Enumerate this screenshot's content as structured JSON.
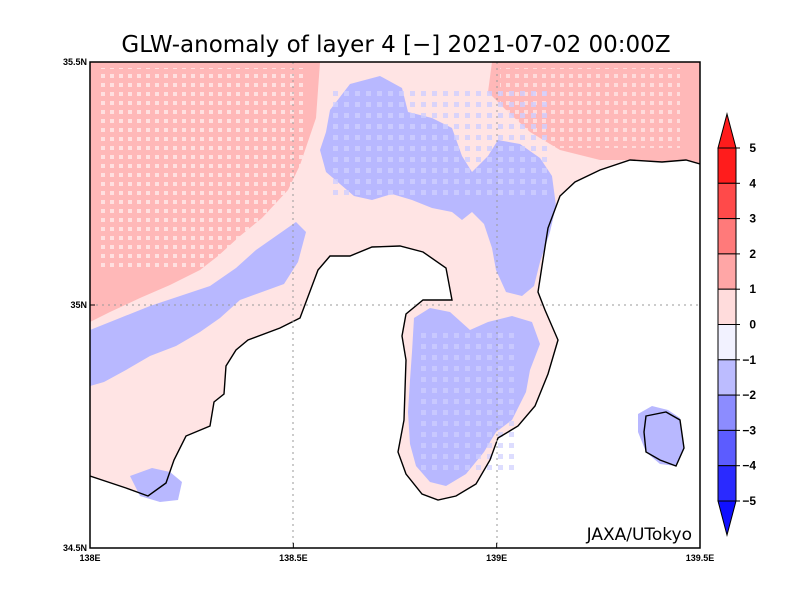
{
  "chart_data": {
    "type": "heatmap",
    "title": "GLW-anomaly of layer 4 [−] 2021-07-02 00:00Z",
    "xlim": [
      138.0,
      139.5
    ],
    "ylim": [
      34.5,
      35.5
    ],
    "x_ticks": [
      {
        "value": 138.0,
        "label": "138E"
      },
      {
        "value": 138.5,
        "label": "138.5E"
      },
      {
        "value": 139.0,
        "label": "139E"
      },
      {
        "value": 139.5,
        "label": "139.5E"
      }
    ],
    "y_ticks": [
      {
        "value": 34.5,
        "label": "34.5N"
      },
      {
        "value": 35.0,
        "label": "35N"
      },
      {
        "value": 35.5,
        "label": "35.5N"
      }
    ],
    "grid": "dotted at 138.5E, 139E and 35N",
    "credit": "JAXA/UTokyo",
    "colorbar": {
      "labels": [
        "5",
        "4",
        "3",
        "2",
        "1",
        "0",
        "−1",
        "−2",
        "−3",
        "−4",
        "−5"
      ],
      "colors": [
        "#ff1c1c",
        "#ff4a4a",
        "#ff7a7a",
        "#ffa6a6",
        "#ffdcdc",
        "#f2f2ff",
        "#bcbcff",
        "#8c8cff",
        "#5c5cff",
        "#2a2aff"
      ],
      "over_color": "#ff1c1c",
      "under_color": "#1010ff"
    },
    "anomaly_regions": [
      {
        "range": "1 to 2",
        "color": "#ffb8b8",
        "area": "northwest inland and northeast corner"
      },
      {
        "range": "0 to 1",
        "color": "#ffe4e4",
        "area": "central band along the coast"
      },
      {
        "range": "-2 to -1",
        "color": "#b8b8ff",
        "area": "north-central highlands, Izu peninsula, offshore island"
      }
    ]
  }
}
